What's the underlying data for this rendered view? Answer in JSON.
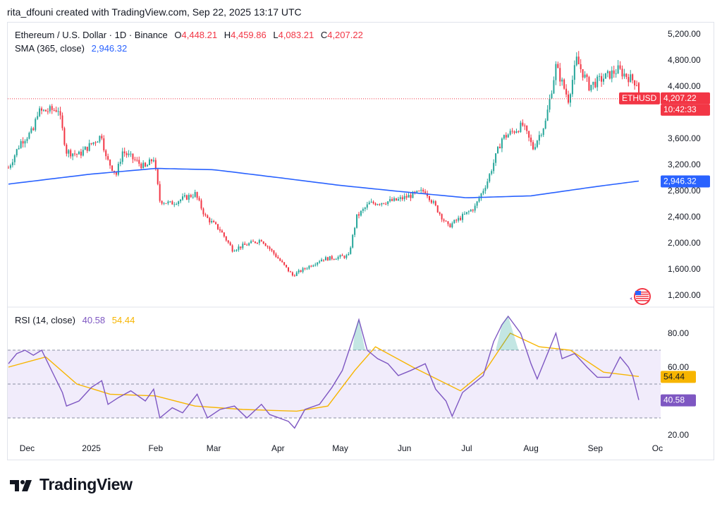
{
  "header": {
    "attribution": "rita_dfouni created with TradingView.com, Sep 22, 2025 13:17 UTC"
  },
  "legend": {
    "symbol": "Ethereum / U.S. Dollar · 1D · Binance",
    "open_label": "O",
    "open": "4,448.21",
    "high_label": "H",
    "high": "4,459.86",
    "low_label": "L",
    "low": "4,083.21",
    "close_label": "C",
    "close": "4,207.22",
    "sma_label": "SMA (365, close)",
    "sma_value": "2,946.32",
    "rsi_label": "RSI (14, close)",
    "rsi_value": "40.58",
    "rsi_ma_value": "54.44"
  },
  "badges": {
    "symbol_tag": "ETHUSD",
    "price": "4,207.22",
    "countdown": "10:42:33",
    "sma": "2,946.32",
    "rsi_ma": "54.44",
    "rsi": "40.58"
  },
  "footer": {
    "brand": "TradingView"
  },
  "colors": {
    "up": "#26a69a",
    "down": "#f23645",
    "sma": "#2962ff",
    "rsi": "#7e57c2",
    "rsi_ma": "#f7b500",
    "rsi_band": "#f1ecfb"
  },
  "chart_data": [
    {
      "type": "candlestick",
      "symbol": "ETHUSD",
      "ylim": [
        1200,
        5200
      ],
      "y_ticks": [
        "5,200.00",
        "4,800.00",
        "4,400.00",
        "3,600.00",
        "3,200.00",
        "2,800.00",
        "2,400.00",
        "2,000.00",
        "1,600.00",
        "1,200.00"
      ],
      "y_tick_values": [
        5200,
        4800,
        4400,
        3600,
        3200,
        2800,
        2400,
        2000,
        1600,
        1200
      ],
      "last_price": 4207.22,
      "anchors_close": [
        [
          "2024-11-22",
          3150
        ],
        [
          "2024-11-28",
          3550
        ],
        [
          "2024-12-04",
          3720
        ],
        [
          "2024-12-06",
          4000
        ],
        [
          "2024-12-16",
          4050
        ],
        [
          "2024-12-20",
          3400
        ],
        [
          "2024-12-26",
          3350
        ],
        [
          "2025-01-06",
          3650
        ],
        [
          "2025-01-08",
          3300
        ],
        [
          "2025-01-13",
          3050
        ],
        [
          "2025-01-16",
          3400
        ],
        [
          "2025-01-27",
          3150
        ],
        [
          "2025-01-31",
          3300
        ],
        [
          "2025-02-03",
          2650
        ],
        [
          "2025-02-08",
          2600
        ],
        [
          "2025-02-20",
          2750
        ],
        [
          "2025-02-25",
          2400
        ],
        [
          "2025-03-04",
          2200
        ],
        [
          "2025-03-10",
          1900
        ],
        [
          "2025-03-24",
          2050
        ],
        [
          "2025-03-31",
          1800
        ],
        [
          "2025-04-08",
          1500
        ],
        [
          "2025-04-22",
          1750
        ],
        [
          "2025-05-05",
          1800
        ],
        [
          "2025-05-09",
          2400
        ],
        [
          "2025-05-15",
          2600
        ],
        [
          "2025-05-28",
          2650
        ],
        [
          "2025-06-11",
          2800
        ],
        [
          "2025-06-17",
          2500
        ],
        [
          "2025-06-22",
          2250
        ],
        [
          "2025-07-01",
          2450
        ],
        [
          "2025-07-05",
          2550
        ],
        [
          "2025-07-11",
          2950
        ],
        [
          "2025-07-18",
          3600
        ],
        [
          "2025-07-28",
          3800
        ],
        [
          "2025-08-02",
          3450
        ],
        [
          "2025-08-08",
          3850
        ],
        [
          "2025-08-13",
          4700
        ],
        [
          "2025-08-19",
          4200
        ],
        [
          "2025-08-23",
          4800
        ],
        [
          "2025-08-29",
          4400
        ],
        [
          "2025-09-12",
          4650
        ],
        [
          "2025-09-21",
          4450
        ],
        [
          "2025-09-22",
          4207
        ]
      ],
      "sma_365": [
        [
          "2024-11-22",
          2900
        ],
        [
          "2024-12-31",
          3050
        ],
        [
          "2025-02-01",
          3140
        ],
        [
          "2025-03-01",
          3120
        ],
        [
          "2025-04-01",
          3000
        ],
        [
          "2025-05-01",
          2880
        ],
        [
          "2025-06-01",
          2780
        ],
        [
          "2025-07-01",
          2690
        ],
        [
          "2025-08-01",
          2720
        ],
        [
          "2025-09-01",
          2860
        ],
        [
          "2025-09-22",
          2946.32
        ]
      ]
    },
    {
      "type": "line",
      "title": "RSI (14, close)",
      "ylim": [
        20,
        100
      ],
      "y_ticks": [
        "80.00",
        "60.00",
        "20.00"
      ],
      "y_tick_values": [
        80,
        60,
        20
      ],
      "bands": [
        70,
        50,
        30
      ],
      "rsi": [
        [
          "2024-11-22",
          62
        ],
        [
          "2024-11-26",
          68
        ],
        [
          "2024-11-30",
          70
        ],
        [
          "2024-12-04",
          67
        ],
        [
          "2024-12-08",
          70
        ],
        [
          "2024-12-12",
          60
        ],
        [
          "2024-12-18",
          45
        ],
        [
          "2024-12-20",
          37
        ],
        [
          "2024-12-26",
          40
        ],
        [
          "2025-01-01",
          48
        ],
        [
          "2025-01-06",
          52
        ],
        [
          "2025-01-09",
          38
        ],
        [
          "2025-01-14",
          42
        ],
        [
          "2025-01-20",
          46
        ],
        [
          "2025-01-27",
          40
        ],
        [
          "2025-01-31",
          47
        ],
        [
          "2025-02-03",
          30
        ],
        [
          "2025-02-09",
          36
        ],
        [
          "2025-02-14",
          33
        ],
        [
          "2025-02-21",
          44
        ],
        [
          "2025-02-26",
          30
        ],
        [
          "2025-03-04",
          35
        ],
        [
          "2025-03-11",
          37
        ],
        [
          "2025-03-17",
          30
        ],
        [
          "2025-03-24",
          38
        ],
        [
          "2025-03-28",
          32
        ],
        [
          "2025-04-06",
          28
        ],
        [
          "2025-04-09",
          24
        ],
        [
          "2025-04-14",
          35
        ],
        [
          "2025-04-21",
          38
        ],
        [
          "2025-04-27",
          48
        ],
        [
          "2025-05-02",
          58
        ],
        [
          "2025-05-08",
          80
        ],
        [
          "2025-05-10",
          88
        ],
        [
          "2025-05-14",
          70
        ],
        [
          "2025-05-19",
          65
        ],
        [
          "2025-05-24",
          62
        ],
        [
          "2025-05-29",
          55
        ],
        [
          "2025-06-04",
          58
        ],
        [
          "2025-06-11",
          62
        ],
        [
          "2025-06-16",
          47
        ],
        [
          "2025-06-21",
          40
        ],
        [
          "2025-06-24",
          31
        ],
        [
          "2025-06-29",
          45
        ],
        [
          "2025-07-04",
          50
        ],
        [
          "2025-07-09",
          55
        ],
        [
          "2025-07-14",
          75
        ],
        [
          "2025-07-18",
          85
        ],
        [
          "2025-07-21",
          90
        ],
        [
          "2025-07-27",
          80
        ],
        [
          "2025-08-01",
          62
        ],
        [
          "2025-08-04",
          53
        ],
        [
          "2025-08-09",
          68
        ],
        [
          "2025-08-13",
          80
        ],
        [
          "2025-08-16",
          65
        ],
        [
          "2025-08-22",
          68
        ],
        [
          "2025-08-28",
          60
        ],
        [
          "2025-09-02",
          54
        ],
        [
          "2025-09-08",
          54
        ],
        [
          "2025-09-13",
          66
        ],
        [
          "2025-09-17",
          60
        ],
        [
          "2025-09-19",
          55
        ],
        [
          "2025-09-22",
          40.58
        ]
      ],
      "rsi_ma": [
        [
          "2024-11-22",
          60
        ],
        [
          "2024-12-10",
          66
        ],
        [
          "2024-12-25",
          50
        ],
        [
          "2025-01-10",
          44
        ],
        [
          "2025-02-01",
          43
        ],
        [
          "2025-02-20",
          37
        ],
        [
          "2025-03-15",
          35
        ],
        [
          "2025-04-10",
          34
        ],
        [
          "2025-04-25",
          37
        ],
        [
          "2025-05-08",
          58
        ],
        [
          "2025-05-18",
          72
        ],
        [
          "2025-06-05",
          60
        ],
        [
          "2025-06-28",
          46
        ],
        [
          "2025-07-10",
          58
        ],
        [
          "2025-07-22",
          80
        ],
        [
          "2025-08-05",
          72
        ],
        [
          "2025-08-20",
          70
        ],
        [
          "2025-09-05",
          57
        ],
        [
          "2025-09-22",
          54.44
        ]
      ]
    }
  ],
  "x_axis": {
    "ticks": [
      "Dec",
      "2025",
      "Feb",
      "Mar",
      "Apr",
      "May",
      "Jun",
      "Jul",
      "Aug",
      "Sep",
      "Oc"
    ],
    "tick_dates": [
      "2024-12-01",
      "2025-01-01",
      "2025-02-01",
      "2025-03-01",
      "2025-04-01",
      "2025-05-01",
      "2025-06-01",
      "2025-07-01",
      "2025-08-01",
      "2025-09-01",
      "2025-10-01"
    ]
  }
}
